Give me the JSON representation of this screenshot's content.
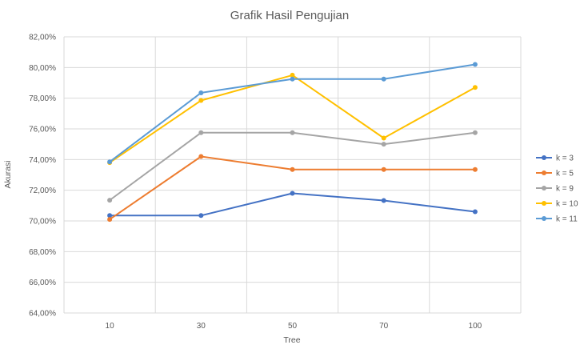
{
  "chart_data": {
    "type": "line",
    "title": "Grafik Hasil Pengujian",
    "xlabel": "Tree",
    "ylabel": "Akurasi",
    "categories": [
      "10",
      "30",
      "50",
      "70",
      "100"
    ],
    "ylim": [
      64,
      82
    ],
    "ytick_step": 2,
    "ytick_labels": [
      "64,00%",
      "66,00%",
      "68,00%",
      "70,00%",
      "72,00%",
      "74,00%",
      "76,00%",
      "78,00%",
      "80,00%",
      "82,00%"
    ],
    "grid": true,
    "legend_position": "right",
    "series": [
      {
        "name": "k = 3",
        "color": "#4472c4",
        "values": [
          70.35,
          70.35,
          71.8,
          71.33,
          70.6
        ]
      },
      {
        "name": "k = 5",
        "color": "#ed7d31",
        "values": [
          70.1,
          74.2,
          73.35,
          73.35,
          73.35
        ]
      },
      {
        "name": "k = 9",
        "color": "#a5a5a5",
        "values": [
          71.35,
          75.75,
          75.75,
          75.0,
          75.75
        ]
      },
      {
        "name": "k = 10",
        "color": "#ffc000",
        "values": [
          73.8,
          77.85,
          79.5,
          75.4,
          78.7
        ]
      },
      {
        "name": "k = 11",
        "color": "#5b9bd5",
        "values": [
          73.85,
          78.35,
          79.25,
          79.25,
          80.2
        ]
      }
    ]
  }
}
